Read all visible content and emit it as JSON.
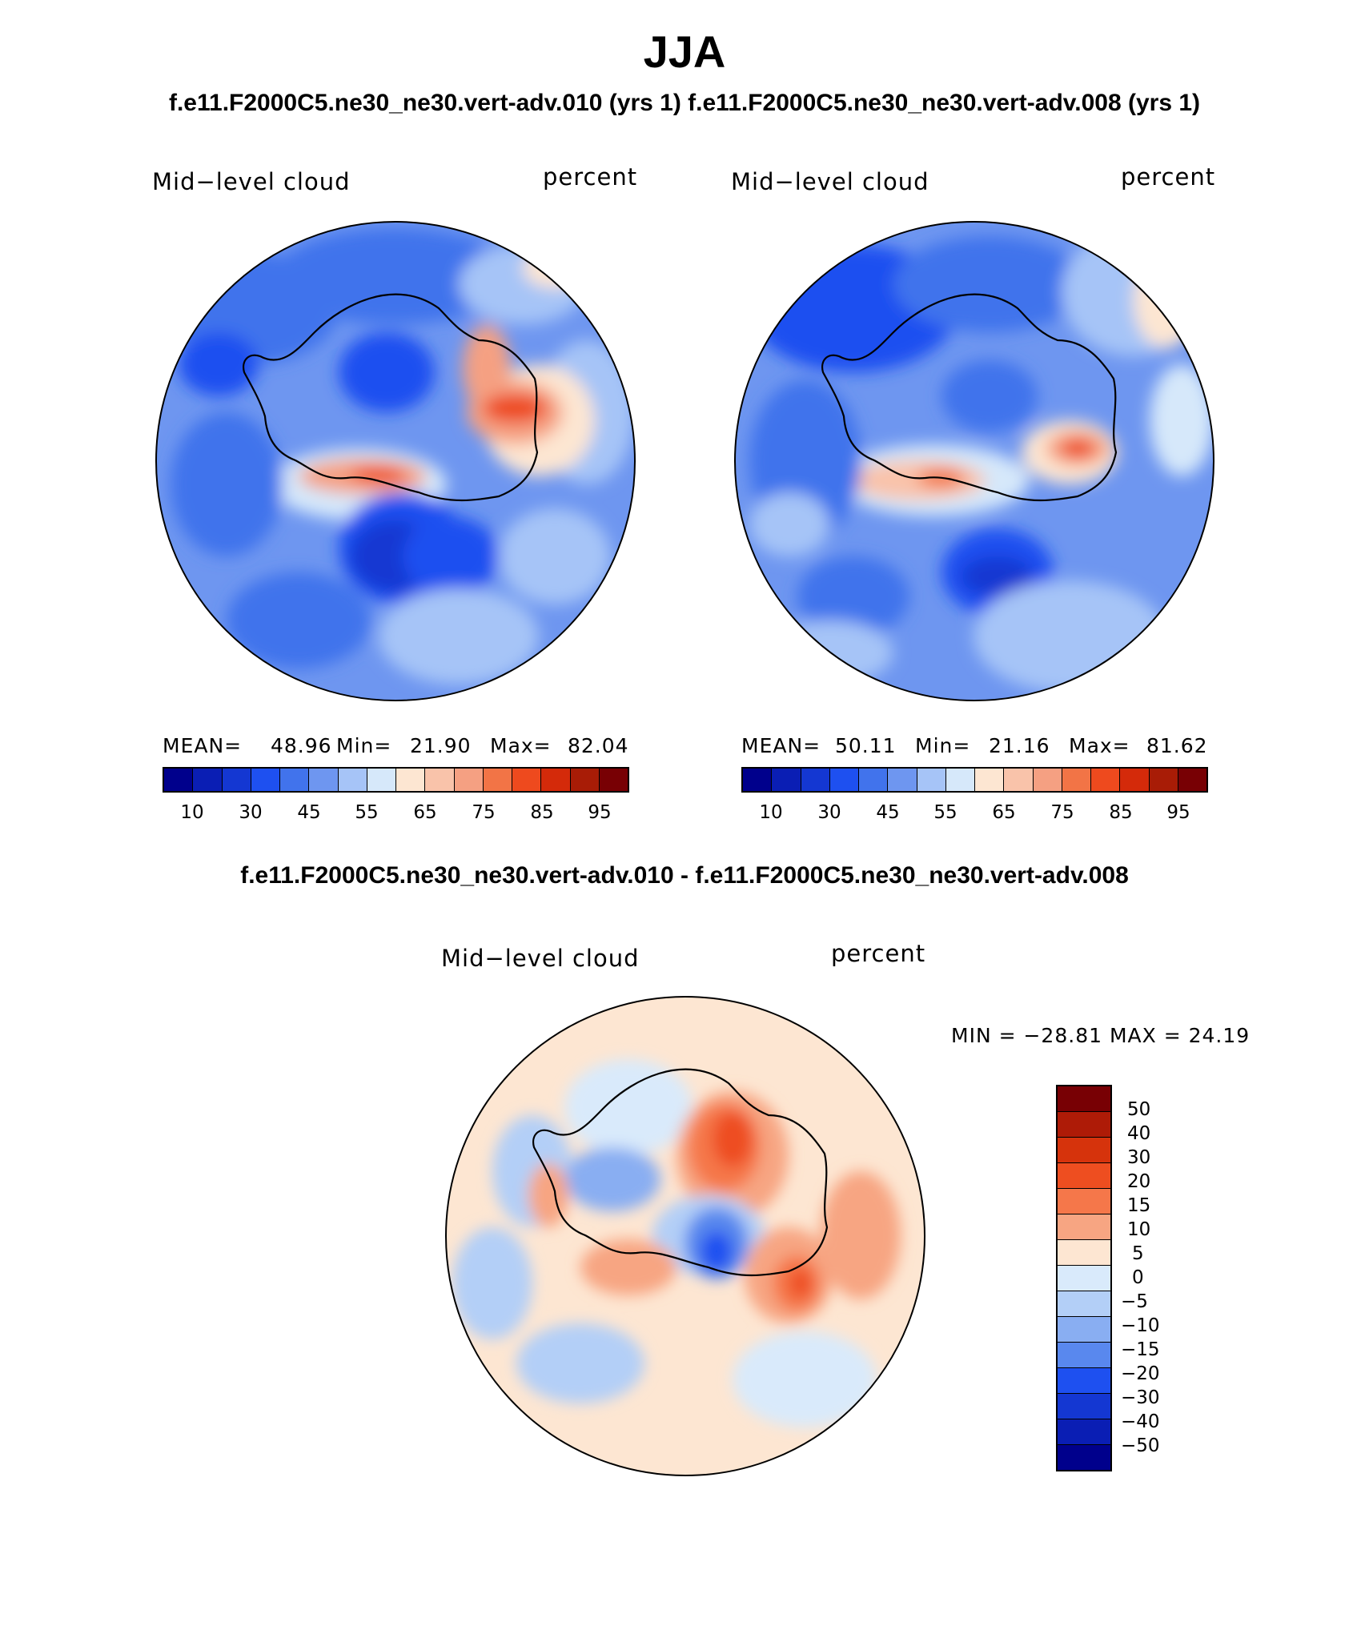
{
  "title": "JJA",
  "subtitle_top": "f.e11.F2000C5.ne30_ne30.vert-adv.010 (yrs 1) f.e11.F2000C5.ne30_ne30.vert-adv.008 (yrs 1)",
  "subtitle_diff": "f.e11.F2000C5.ne30_ne30.vert-adv.010 - f.e11.F2000C5.ne30_ne30.vert-adv.008",
  "panels": [
    {
      "variable": "Mid−level cloud",
      "units": "percent",
      "mean_label": "MEAN=",
      "mean": "48.96",
      "min_label": "Min=",
      "min": "21.90",
      "max_label": "Max=",
      "max": "82.04"
    },
    {
      "variable": "Mid−level cloud",
      "units": "percent",
      "mean_label": "MEAN=",
      "mean": "50.11",
      "min_label": "Min=",
      "min": "21.16",
      "max_label": "Max=",
      "max": "81.62"
    }
  ],
  "diff_panel": {
    "variable": "Mid−level cloud",
    "units": "percent",
    "minmax_text": "MIN = −28.81 MAX =   24.19"
  },
  "colorbar_top": {
    "colors": [
      "#00008c",
      "#0a1eb4",
      "#1437d2",
      "#1e50f0",
      "#4173ec",
      "#6e96f0",
      "#a6c4f7",
      "#d6e8fa",
      "#fde6d2",
      "#f9c3aa",
      "#f5a082",
      "#f27446",
      "#ee4a1e",
      "#d42a0a",
      "#a81c06",
      "#780004"
    ],
    "tick_labels": [
      "10",
      "30",
      "45",
      "55",
      "65",
      "75",
      "85",
      "95"
    ]
  },
  "colorbar_diff": {
    "colors": [
      "#780004",
      "#ae1b07",
      "#d6330c",
      "#ee4e20",
      "#f5774a",
      "#f7a582",
      "#fde6d2",
      "#d9eafb",
      "#b3cff7",
      "#89aef2",
      "#5988ee",
      "#1e50f0",
      "#1437d2",
      "#0a1eb4",
      "#00008c"
    ],
    "tick_labels": [
      "50",
      "40",
      "30",
      "20",
      "15",
      "10",
      "5",
      "0",
      "−5",
      "−10",
      "−15",
      "−20",
      "−30",
      "−40",
      "−50"
    ]
  }
}
